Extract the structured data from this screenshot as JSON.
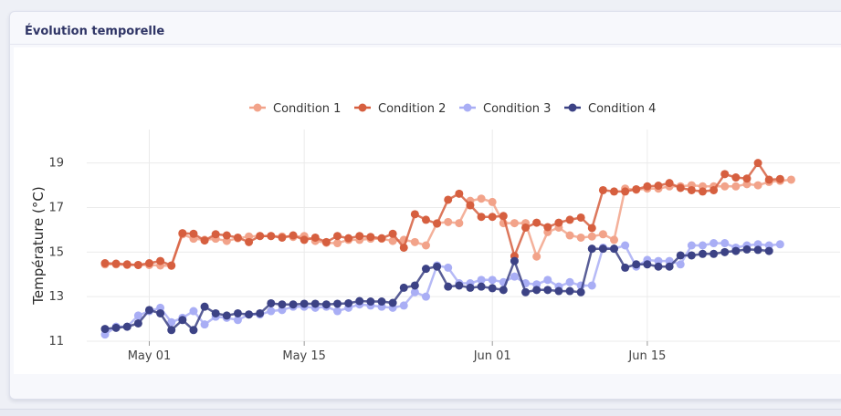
{
  "panel": {
    "title": "Évolution temporelle"
  },
  "chart_data": {
    "type": "line",
    "ylabel": "Température (°C)",
    "xlabel": "",
    "ylim": [
      11,
      19.6
    ],
    "yticks": [
      11,
      13,
      15,
      17,
      19
    ],
    "xticks": [
      {
        "label": "May 01",
        "day": 1
      },
      {
        "label": "May 15",
        "day": 15
      },
      {
        "label": "Jun 01",
        "day": 32
      },
      {
        "label": "Jun 15",
        "day": 46
      }
    ],
    "x_start": "Apr 27",
    "legend_position": "top-center",
    "grid": true,
    "series": [
      {
        "name": "Condition 1",
        "color": "#f2a38a",
        "values": [
          14.45,
          14.45,
          14.42,
          14.42,
          14.42,
          14.4,
          14.38,
          15.8,
          15.6,
          15.55,
          15.6,
          15.5,
          15.62,
          15.7,
          15.72,
          15.72,
          15.7,
          15.68,
          15.72,
          15.5,
          15.42,
          15.4,
          15.55,
          15.55,
          15.6,
          15.6,
          15.5,
          15.55,
          15.45,
          15.3,
          16.3,
          16.35,
          16.3,
          17.3,
          17.4,
          17.25,
          16.3,
          16.3,
          16.3,
          14.8,
          15.9,
          16.1,
          15.75,
          15.65,
          15.7,
          15.8,
          15.55,
          17.85,
          17.8,
          17.85,
          17.85,
          17.95,
          17.95,
          18.0,
          17.95,
          17.95,
          17.95,
          17.95,
          18.05,
          18.0,
          18.15,
          18.2,
          18.25
        ]
      },
      {
        "name": "Condition 2",
        "color": "#d65f3f",
        "values": [
          14.5,
          14.48,
          14.45,
          14.42,
          14.5,
          14.6,
          14.4,
          15.85,
          15.82,
          15.52,
          15.8,
          15.75,
          15.65,
          15.45,
          15.72,
          15.72,
          15.65,
          15.75,
          15.55,
          15.65,
          15.45,
          15.72,
          15.62,
          15.72,
          15.68,
          15.62,
          15.82,
          15.2,
          16.7,
          16.45,
          16.28,
          17.35,
          17.62,
          17.1,
          16.58,
          16.58,
          16.62,
          14.82,
          16.1,
          16.32,
          16.12,
          16.32,
          16.45,
          16.55,
          16.08,
          17.78,
          17.72,
          17.72,
          17.82,
          17.95,
          17.98,
          18.1,
          17.88,
          17.78,
          17.72,
          17.78,
          18.5,
          18.35,
          18.3,
          19.0,
          18.25,
          18.28
        ]
      },
      {
        "name": "Condition 3",
        "color": "#a9aef5",
        "values": [
          11.3,
          11.65,
          11.65,
          12.15,
          12.35,
          12.5,
          11.85,
          12.05,
          12.35,
          11.75,
          12.1,
          12.05,
          11.95,
          12.2,
          12.2,
          12.35,
          12.4,
          12.55,
          12.55,
          12.5,
          12.55,
          12.35,
          12.5,
          12.65,
          12.6,
          12.55,
          12.5,
          12.6,
          13.2,
          13.0,
          14.4,
          14.3,
          13.6,
          13.6,
          13.75,
          13.75,
          13.65,
          13.9,
          13.6,
          13.55,
          13.75,
          13.45,
          13.65,
          13.5,
          13.5,
          15.2,
          15.15,
          15.3,
          14.35,
          14.65,
          14.6,
          14.6,
          14.45,
          15.3,
          15.3,
          15.4,
          15.4,
          15.2,
          15.3,
          15.35,
          15.3,
          15.35
        ]
      },
      {
        "name": "Condition 4",
        "color": "#3c4285",
        "values": [
          11.55,
          11.6,
          11.65,
          11.8,
          12.4,
          12.25,
          11.5,
          11.95,
          11.5,
          12.55,
          12.25,
          12.15,
          12.25,
          12.2,
          12.25,
          12.7,
          12.65,
          12.65,
          12.68,
          12.68,
          12.65,
          12.68,
          12.7,
          12.8,
          12.78,
          12.78,
          12.72,
          13.4,
          13.5,
          14.25,
          14.35,
          13.45,
          13.5,
          13.4,
          13.45,
          13.38,
          13.3,
          14.6,
          13.2,
          13.3,
          13.3,
          13.25,
          13.25,
          13.2,
          15.15,
          15.15,
          15.15,
          14.3,
          14.45,
          14.45,
          14.35,
          14.35,
          14.85,
          14.85,
          14.92,
          14.92,
          15.0,
          15.05,
          15.12,
          15.1,
          15.05
        ]
      }
    ]
  }
}
